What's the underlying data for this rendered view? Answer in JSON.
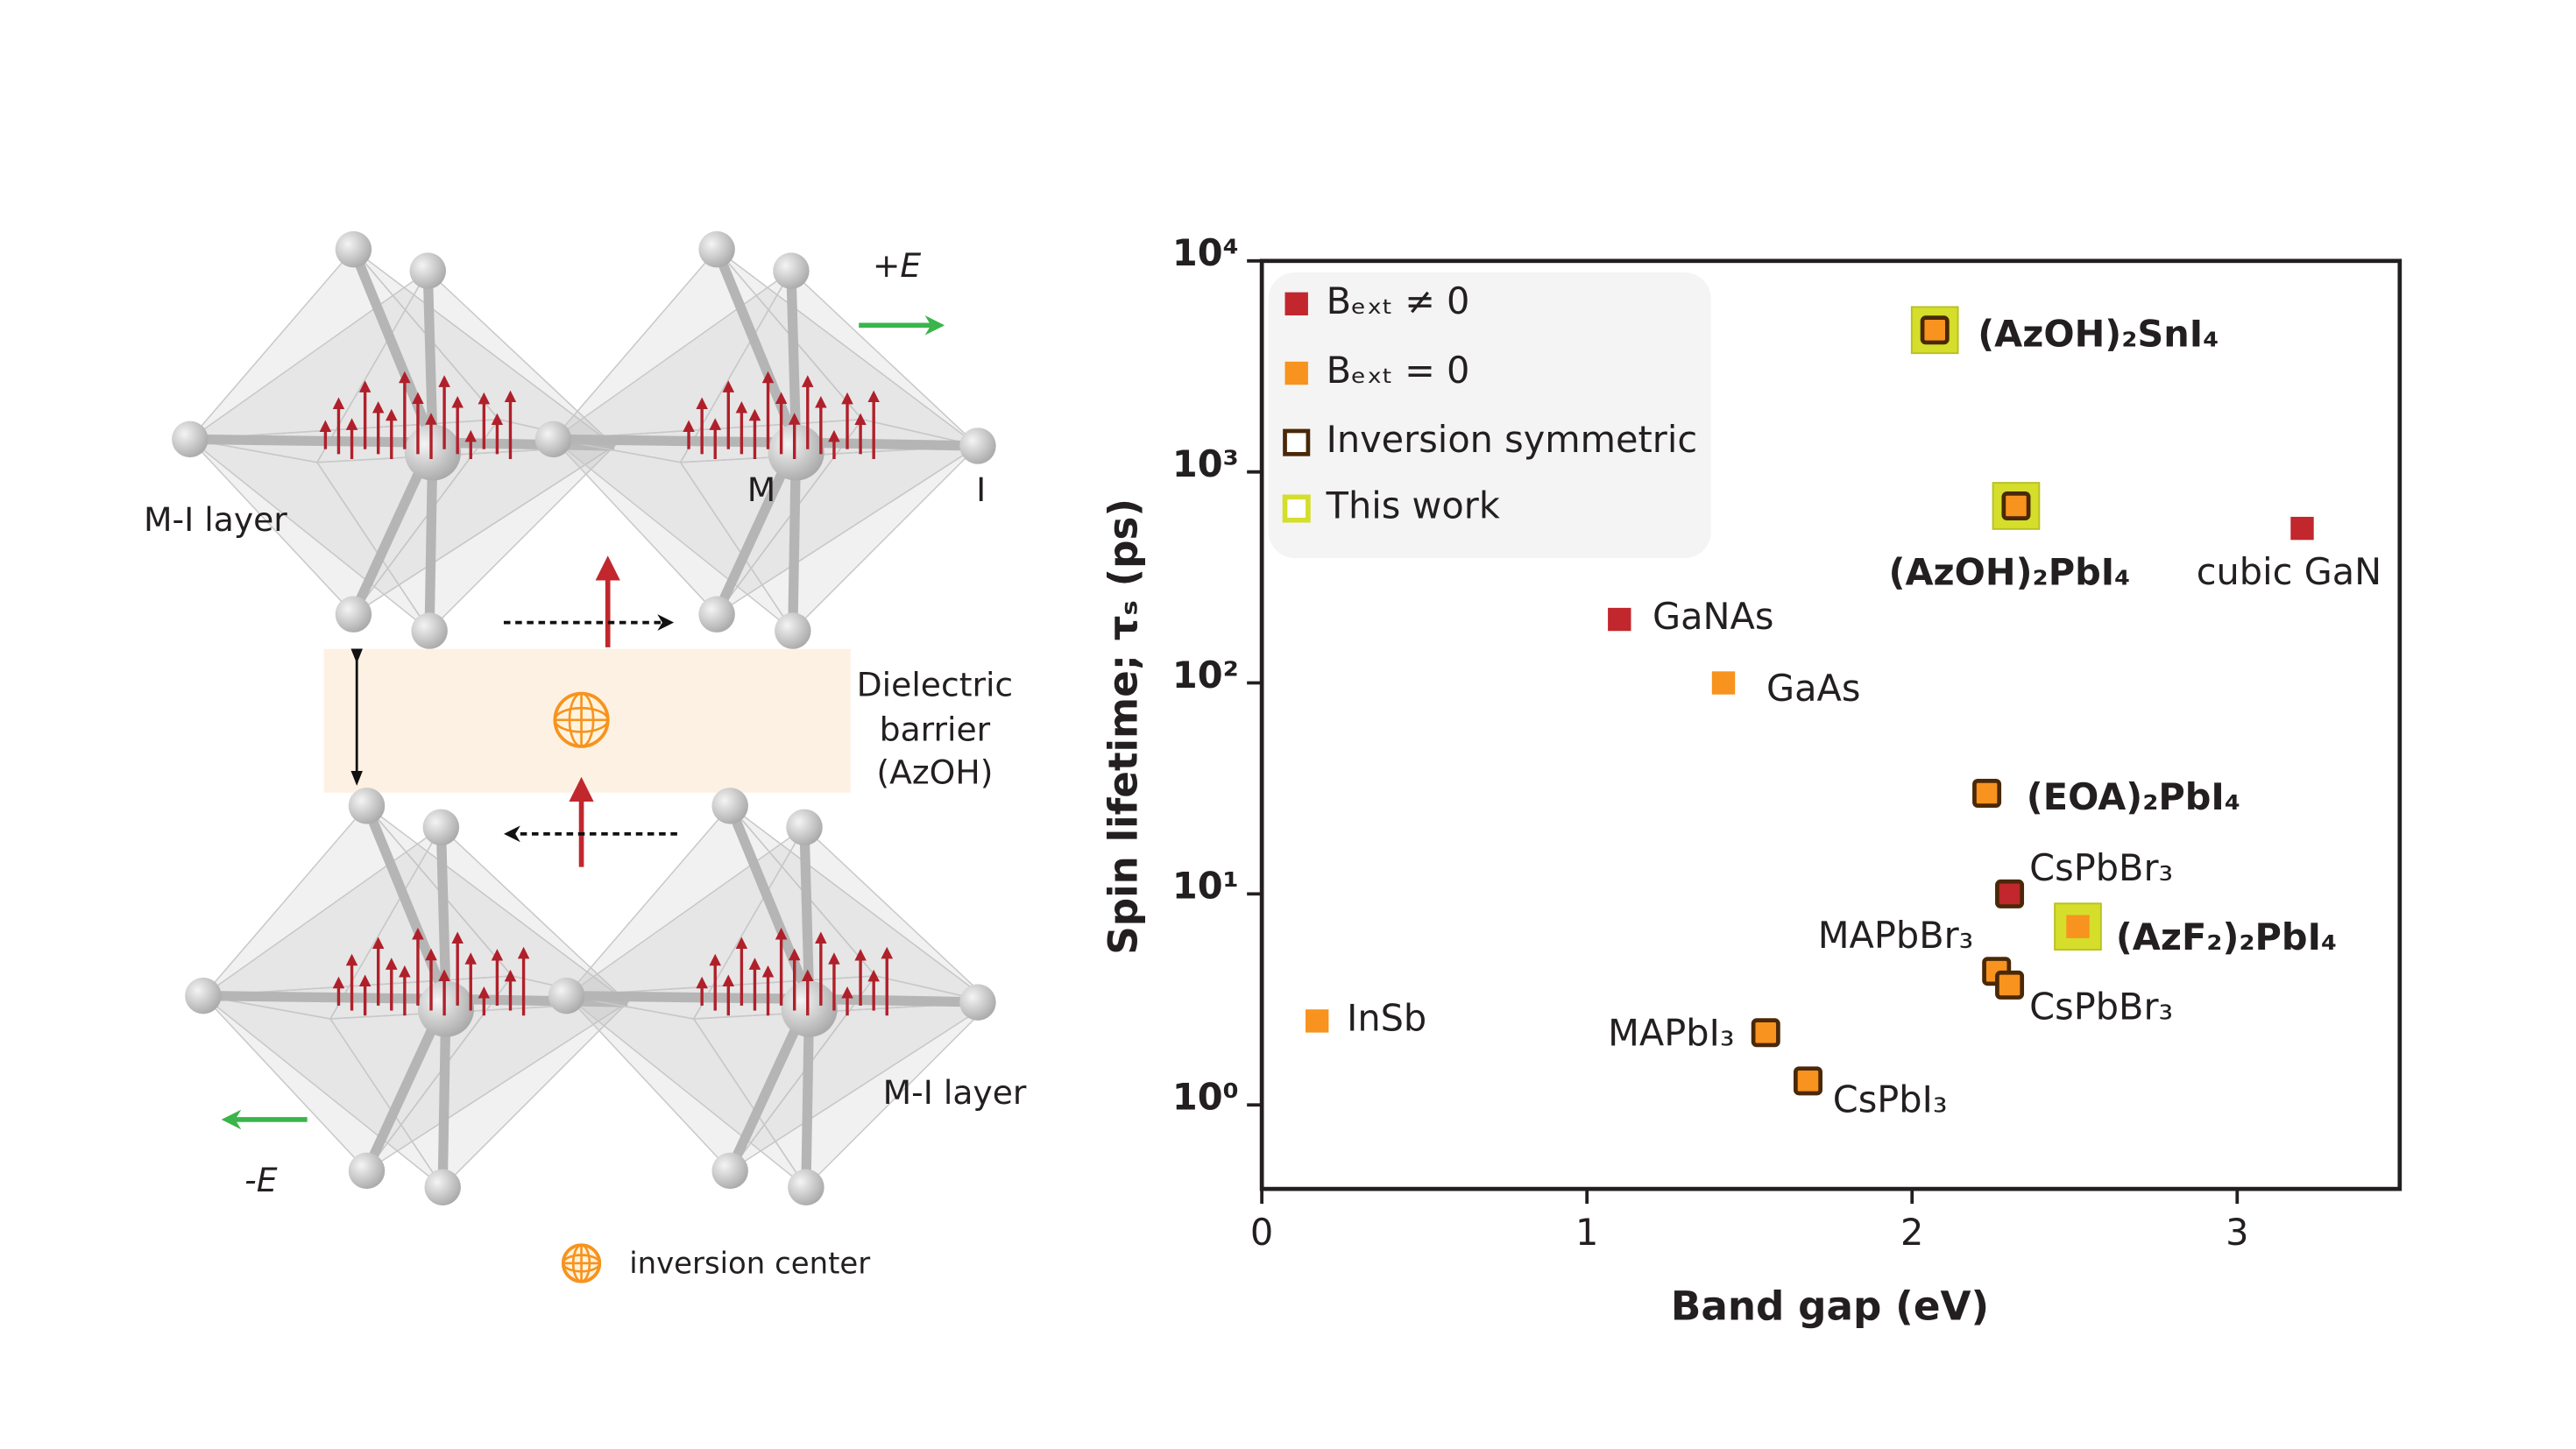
{
  "diagram": {
    "field_top": "+E",
    "layer_top": "M-I layer",
    "metal": "M",
    "iodide": "I",
    "barrier": [
      "Dielectric",
      "barrier",
      "(AzOH)"
    ],
    "layer_bottom": "M-I layer",
    "field_bottom": "-E",
    "legend": "inversion center"
  },
  "chart_data": {
    "type": "scatter",
    "x_label": "Band gap (eV)",
    "y_label": "Spin lifetime; τₛ (ps)",
    "xlim": [
      0,
      3.5
    ],
    "xticks": [
      0,
      1,
      2,
      3
    ],
    "ylim": [
      0.4,
      10000
    ],
    "yticks": [
      {
        "value": 1,
        "label": "10⁰"
      },
      {
        "value": 10,
        "label": "10¹"
      },
      {
        "value": 100,
        "label": "10²"
      },
      {
        "value": 1000,
        "label": "10³"
      },
      {
        "value": 10000,
        "label": "10⁴"
      }
    ],
    "log_y": true,
    "series": [
      {
        "name": "Bₑₓₜ ≠ 0",
        "color": "#c1272d",
        "x": [
          1.1,
          3.2,
          2.3
        ],
        "values": [
          200,
          540,
          10
        ],
        "labels": [
          "GaNAs",
          "cubic GaN",
          "CsPbBr₃"
        ],
        "inversion_symmetric": [
          false,
          false,
          true
        ],
        "this_work": [
          false,
          false,
          false
        ],
        "label_bold": [
          false,
          false,
          false
        ]
      },
      {
        "name": "Bₑₓₜ = 0",
        "color": "#f7931e",
        "x": [
          0.17,
          1.42,
          2.07,
          2.32,
          2.23,
          2.51,
          2.26,
          2.3,
          1.55,
          1.68
        ],
        "values": [
          2.5,
          100,
          4700,
          690,
          30,
          7,
          4.3,
          3.7,
          2.2,
          1.3
        ],
        "labels": [
          "InSb",
          "GaAs",
          "(AzOH)₂SnI₄",
          "(AzOH)₂PbI₄",
          "(EOA)₂PbI₄",
          "(AzF₂)₂PbI₄",
          "MAPbBr₃",
          "CsPbBr₃",
          "MAPbI₃",
          "CsPbI₃"
        ],
        "inversion_symmetric": [
          false,
          false,
          true,
          true,
          true,
          false,
          true,
          true,
          true,
          true
        ],
        "this_work": [
          false,
          false,
          true,
          true,
          false,
          true,
          false,
          false,
          false,
          false
        ],
        "label_bold": [
          false,
          false,
          true,
          true,
          true,
          true,
          false,
          false,
          false,
          false
        ]
      }
    ],
    "markers": [
      {
        "name": "Inversion symmetric",
        "color": "#4a2808"
      },
      {
        "name": "This work",
        "color": "#d4de2b"
      }
    ]
  }
}
